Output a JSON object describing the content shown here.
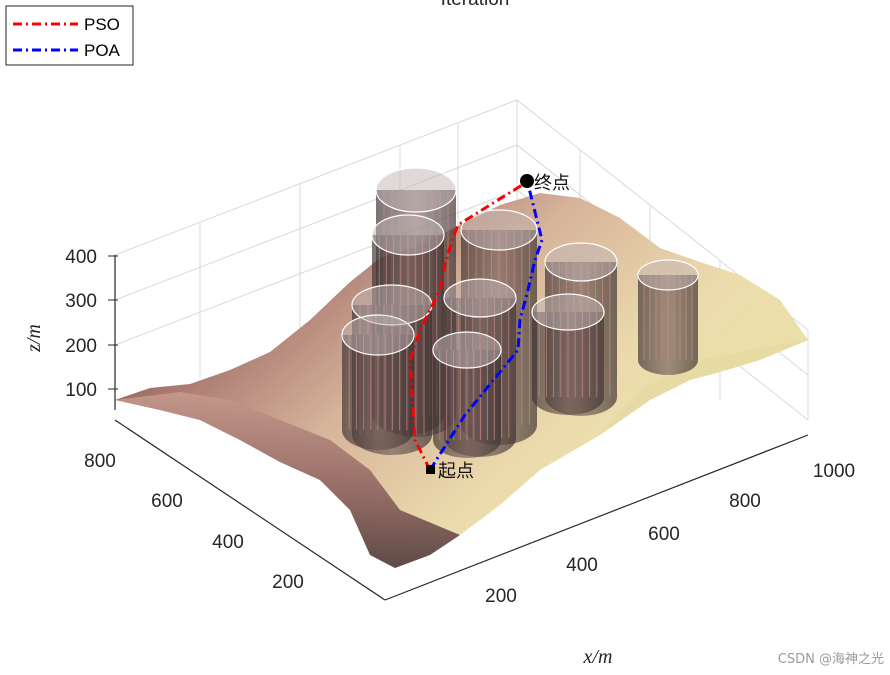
{
  "chart_data": {
    "type": "line",
    "title": "Iteration",
    "xlabel": "x/m",
    "ylabel": "",
    "zlabel": "z/m",
    "x_ticks": [
      "200",
      "400",
      "600",
      "800",
      "1000"
    ],
    "y_ticks": [
      "200",
      "400",
      "600",
      "800"
    ],
    "z_ticks": [
      "100",
      "200",
      "300",
      "400"
    ],
    "series": [
      {
        "name": "PSO",
        "color": "#ff0000",
        "points": [
          [
            430,
            470
          ],
          [
            415,
            440
          ],
          [
            410,
            360
          ],
          [
            420,
            330
          ],
          [
            430,
            310
          ],
          [
            440,
            290
          ],
          [
            445,
            265
          ],
          [
            452,
            240
          ],
          [
            458,
            225
          ],
          [
            490,
            205
          ],
          [
            527,
            182
          ]
        ]
      },
      {
        "name": "POA",
        "color": "#0000ff",
        "points": [
          [
            430,
            470
          ],
          [
            465,
            415
          ],
          [
            518,
            350
          ],
          [
            520,
            320
          ],
          [
            528,
            290
          ],
          [
            535,
            260
          ],
          [
            542,
            240
          ],
          [
            530,
            192
          ],
          [
            527,
            182
          ]
        ]
      }
    ],
    "markers": [
      {
        "label": "起点",
        "shape": "square"
      },
      {
        "label": "终点",
        "shape": "circle"
      }
    ],
    "obstacles_count": 9,
    "legend_position": "top-left",
    "grid": true
  },
  "watermark": "CSDN @海神之光"
}
